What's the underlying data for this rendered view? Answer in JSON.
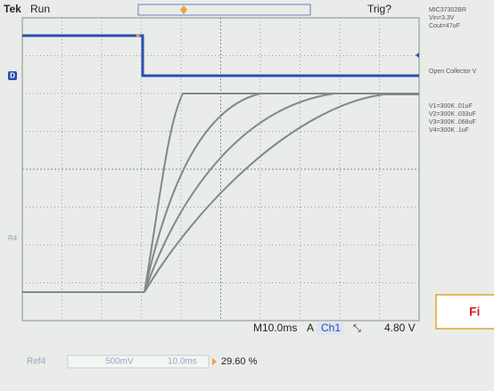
{
  "header": {
    "brand": "Tek",
    "state": "Run",
    "trigger": "Trig?"
  },
  "side_notes": {
    "part": "MIC37302BR",
    "vin": "Vin=3.3V",
    "cout": "Cout=47uF",
    "output": "Open Collector V",
    "legend": [
      "V1=300K .01uF",
      "V2=300K .033uF",
      "V3=300K .068uF",
      "V4=300K .1uF"
    ]
  },
  "markers": {
    "channel": "D",
    "reference": "R4"
  },
  "status_bar": {
    "timebase": "M10.0ms",
    "trigger_mode": "A",
    "channel": "Ch1",
    "level": "4.80 V"
  },
  "ref_bar": {
    "ref": "Ref4",
    "scale": "500mV",
    "time": "10.0ms",
    "position": "29.60 %"
  },
  "figure_tag": "Fi"
}
